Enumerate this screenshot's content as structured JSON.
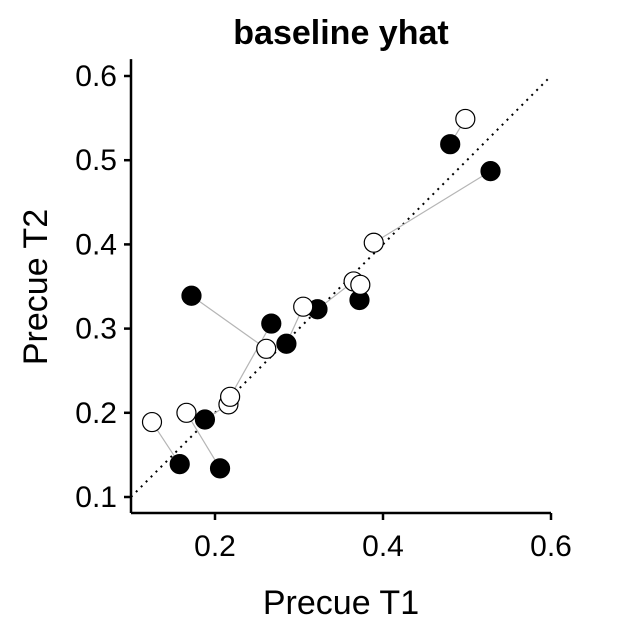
{
  "chart_data": {
    "type": "scatter",
    "title": "baseline yhat",
    "xlabel": "Precue T1",
    "ylabel": "Precue T2",
    "xlim": [
      0.1,
      0.6
    ],
    "ylim": [
      0.1,
      0.62
    ],
    "xticks": [
      0.2,
      0.4,
      0.6
    ],
    "xtick_labels": [
      "0.2",
      "0.4",
      "0.6"
    ],
    "yticks": [
      0.1,
      0.2,
      0.3,
      0.4,
      0.5,
      0.6
    ],
    "ytick_labels": [
      "0.1",
      "0.2",
      "0.3",
      "0.4",
      "0.5",
      "0.6"
    ],
    "identity_line": {
      "from": [
        0.1,
        0.1
      ],
      "to": [
        0.6,
        0.6
      ],
      "style": "dotted"
    },
    "series": [
      {
        "name": "filled",
        "style": "filled"
      },
      {
        "name": "open",
        "style": "open"
      }
    ],
    "pairs": [
      {
        "filled": [
          0.158,
          0.139
        ],
        "open": [
          0.125,
          0.189
        ]
      },
      {
        "filled": [
          0.206,
          0.134
        ],
        "open": [
          0.166,
          0.2
        ]
      },
      {
        "filled": [
          0.188,
          0.192
        ],
        "open": [
          0.216,
          0.21
        ]
      },
      {
        "filled": [
          0.172,
          0.339
        ],
        "open": [
          0.261,
          0.276
        ]
      },
      {
        "filled": [
          0.267,
          0.306
        ],
        "open": [
          0.218,
          0.219
        ]
      },
      {
        "filled": [
          0.285,
          0.282
        ],
        "open": [
          0.305,
          0.326
        ]
      },
      {
        "filled": [
          0.322,
          0.323
        ],
        "open": [
          0.365,
          0.356
        ]
      },
      {
        "filled": [
          0.372,
          0.334
        ],
        "open": [
          0.373,
          0.352
        ]
      },
      {
        "filled": [
          0.48,
          0.519
        ],
        "open": [
          0.498,
          0.549
        ]
      },
      {
        "filled": [
          0.528,
          0.487
        ],
        "open": [
          0.389,
          0.402
        ]
      }
    ]
  }
}
